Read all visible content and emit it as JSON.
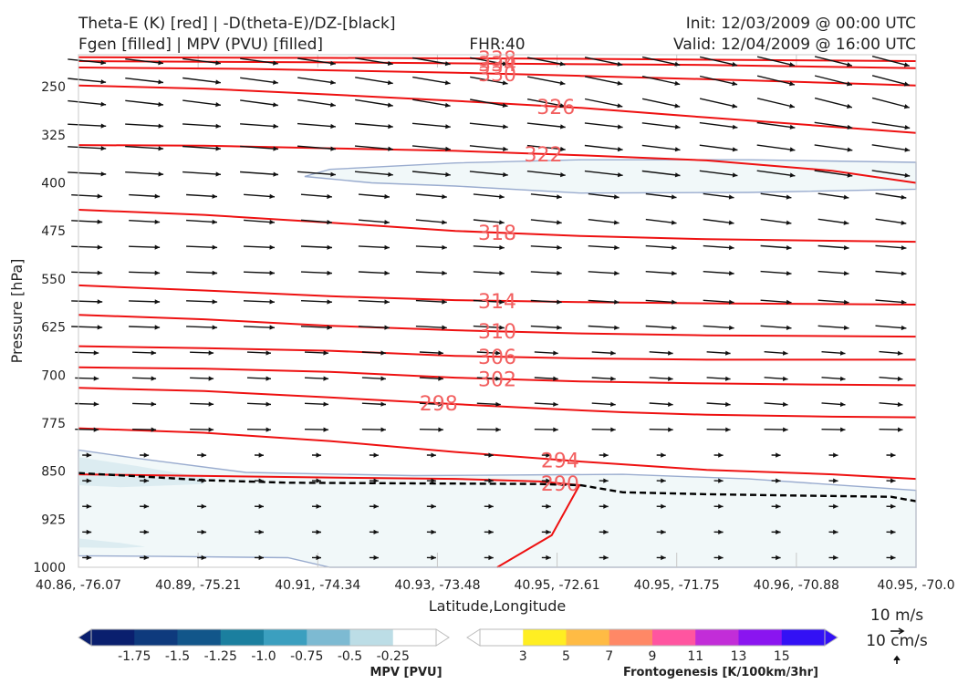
{
  "header": {
    "title_line1": "Theta-E (K) [red] | -D(theta-E)/DZ-[black]",
    "title_line2": "Fgen [filled] | MPV (PVU) [filled]",
    "fhr": "FHR:40",
    "init": "Init: 12/03/2009 @ 00:00 UTC",
    "valid": "Valid: 12/04/2009 @ 16:00 UTC"
  },
  "colors": {
    "theta_e": "#ee1111",
    "theta_e_label": "#f26060",
    "stability": "#000000",
    "vectors": "#111111",
    "mpv_fill": "#f1f8f9",
    "mpv_fill_dark": "#dcecf1",
    "mpv_outline": "#9aaccf"
  },
  "chart_data": {
    "type": "contour",
    "xlabel": "Latitude,Longitude",
    "ylabel": "Pressure [hPa]",
    "x_ticks": [
      "40.86, -76.07",
      "40.89, -75.21",
      "40.91, -74.34",
      "40.93, -73.48",
      "40.95, -72.61",
      "40.95, -71.75",
      "40.96, -70.88",
      "40.95, -70.0"
    ],
    "y_ticks": [
      250,
      325,
      400,
      475,
      550,
      625,
      700,
      775,
      850,
      925,
      1000
    ],
    "ylim": [
      1000,
      200
    ],
    "theta_e_contours": [
      {
        "value": 290,
        "label": "290",
        "points": [
          [
            0,
            855
          ],
          [
            0.3,
            860
          ],
          [
            0.45,
            862
          ],
          [
            0.55,
            866
          ],
          [
            0.6,
            872
          ]
        ]
      },
      {
        "value": 294,
        "label": "294",
        "points": [
          [
            0,
            783
          ],
          [
            0.15,
            790
          ],
          [
            0.3,
            803
          ],
          [
            0.45,
            820
          ],
          [
            0.6,
            835
          ],
          [
            0.75,
            848
          ],
          [
            0.9,
            855
          ],
          [
            1,
            862
          ]
        ]
      },
      {
        "value": 298,
        "label": "298",
        "points": [
          [
            0,
            720
          ],
          [
            0.15,
            725
          ],
          [
            0.3,
            735
          ],
          [
            0.4,
            742
          ],
          [
            0.55,
            752
          ],
          [
            0.65,
            758
          ],
          [
            0.75,
            762
          ],
          [
            0.9,
            765
          ],
          [
            1,
            766
          ]
        ]
      },
      {
        "value": 302,
        "label": "302",
        "points": [
          [
            0,
            688
          ],
          [
            0.15,
            690
          ],
          [
            0.3,
            695
          ],
          [
            0.45,
            704
          ],
          [
            0.6,
            710
          ],
          [
            0.75,
            713
          ],
          [
            0.9,
            715
          ],
          [
            1,
            716
          ]
        ]
      },
      {
        "value": 306,
        "label": "306",
        "points": [
          [
            0,
            655
          ],
          [
            0.15,
            658
          ],
          [
            0.3,
            662
          ],
          [
            0.45,
            670
          ],
          [
            0.6,
            674
          ],
          [
            0.75,
            676
          ],
          [
            1,
            676
          ]
        ]
      },
      {
        "value": 310,
        "label": "310",
        "points": [
          [
            0,
            606
          ],
          [
            0.15,
            613
          ],
          [
            0.3,
            623
          ],
          [
            0.45,
            630
          ],
          [
            0.6,
            635
          ],
          [
            0.75,
            638
          ],
          [
            1,
            640
          ]
        ]
      },
      {
        "value": 314,
        "label": "314",
        "points": [
          [
            0,
            560
          ],
          [
            0.15,
            568
          ],
          [
            0.3,
            577
          ],
          [
            0.45,
            583
          ],
          [
            0.6,
            586
          ],
          [
            0.75,
            588
          ],
          [
            1,
            590
          ]
        ]
      },
      {
        "value": 318,
        "label": "318",
        "points": [
          [
            0,
            442
          ],
          [
            0.15,
            450
          ],
          [
            0.3,
            462
          ],
          [
            0.45,
            475
          ],
          [
            0.6,
            483
          ],
          [
            0.75,
            488
          ],
          [
            1,
            492
          ]
        ]
      },
      {
        "value": 322,
        "label": "322",
        "points": [
          [
            0,
            341
          ],
          [
            0.15,
            342
          ],
          [
            0.3,
            346
          ],
          [
            0.45,
            350
          ],
          [
            0.6,
            357
          ],
          [
            0.75,
            365
          ],
          [
            0.9,
            381
          ],
          [
            1,
            400
          ]
        ]
      },
      {
        "value": 326,
        "label": "326",
        "points": [
          [
            0,
            248
          ],
          [
            0.15,
            253
          ],
          [
            0.3,
            262
          ],
          [
            0.45,
            272
          ],
          [
            0.6,
            283
          ],
          [
            0.75,
            298
          ],
          [
            1,
            322
          ]
        ]
      },
      {
        "value": 330,
        "label": "330",
        "points": [
          [
            0,
            220
          ],
          [
            0.2,
            222
          ],
          [
            0.45,
            228
          ],
          [
            0.6,
            233
          ],
          [
            0.8,
            240
          ],
          [
            1,
            248
          ]
        ]
      },
      {
        "value": 334,
        "label": "334",
        "points": [
          [
            0,
            210
          ],
          [
            0.3,
            212
          ],
          [
            0.5,
            214
          ],
          [
            0.75,
            216
          ],
          [
            1,
            221
          ]
        ]
      },
      {
        "value": 338,
        "label": "338",
        "points": [
          [
            0,
            204
          ],
          [
            0.3,
            205
          ],
          [
            0.55,
            206
          ],
          [
            1,
            210
          ]
        ]
      }
    ],
    "stability_contour": {
      "points": [
        [
          0,
          853
        ],
        [
          0.07,
          858
        ],
        [
          0.15,
          864
        ],
        [
          0.25,
          868
        ],
        [
          0.4,
          869
        ],
        [
          0.55,
          870
        ],
        [
          0.6,
          872
        ],
        [
          0.65,
          883
        ],
        [
          0.75,
          886
        ],
        [
          0.85,
          888
        ],
        [
          0.97,
          890
        ],
        [
          1,
          897
        ]
      ]
    },
    "mpv_regions": [
      {
        "min_pvu": -0.25,
        "points": [
          [
            0.27,
            390
          ],
          [
            0.3,
            379
          ],
          [
            0.45,
            369
          ],
          [
            0.6,
            364
          ],
          [
            0.8,
            364
          ],
          [
            1,
            368
          ],
          [
            1,
            410
          ],
          [
            0.8,
            415
          ],
          [
            0.6,
            416
          ],
          [
            0.45,
            405
          ],
          [
            0.35,
            400
          ]
        ]
      },
      {
        "min_pvu": -0.25,
        "points": [
          [
            0,
            817
          ],
          [
            0.07,
            830
          ],
          [
            0.2,
            852
          ],
          [
            0.4,
            857
          ],
          [
            0.65,
            855
          ],
          [
            0.8,
            862
          ],
          [
            1,
            880
          ],
          [
            1,
            1000
          ],
          [
            0.3,
            1000
          ],
          [
            0.25,
            985
          ],
          [
            0.1,
            983
          ],
          [
            0,
            982
          ]
        ]
      },
      {
        "min_pvu": -0.5,
        "points": [
          [
            0,
            828
          ],
          [
            0.07,
            842
          ],
          [
            0.15,
            860
          ],
          [
            0.15,
            870
          ],
          [
            0.05,
            875
          ],
          [
            0,
            872
          ]
        ]
      },
      {
        "min_pvu": -0.5,
        "points": [
          [
            0,
            955
          ],
          [
            0.05,
            962
          ],
          [
            0.08,
            968
          ],
          [
            0.05,
            970
          ],
          [
            0,
            969
          ]
        ]
      }
    ],
    "wind_vector_rows_hpa": [
      210,
      240,
      275,
      310,
      345,
      385,
      420,
      460,
      500,
      540,
      585,
      625,
      665,
      705,
      745,
      785,
      825,
      865,
      905,
      945,
      985
    ]
  },
  "vectors_key": {
    "label1": "10 m/s",
    "label2": "10 cm/s"
  },
  "colorbar_mpv": {
    "label": "MPV [PVU]",
    "ticks": [
      "-1.75",
      "-1.5",
      "-1.25",
      "-1.0",
      "-0.75",
      "-0.5",
      "-0.25"
    ],
    "colors": [
      "#0a1f6e",
      "#0e3a7d",
      "#12568a",
      "#1b7f9f",
      "#3b9fbf",
      "#7dbad2",
      "#bcdde6",
      "#ffffff"
    ]
  },
  "colorbar_fgen": {
    "label": "Frontogenesis [K/100km/3hr]",
    "ticks": [
      "3",
      "5",
      "7",
      "9",
      "11",
      "13",
      "15"
    ],
    "colors": [
      "#ffffff",
      "#ffee22",
      "#ffbb44",
      "#ff8866",
      "#ff55a0",
      "#c22dd8",
      "#8a15f0",
      "#3311f5"
    ]
  }
}
